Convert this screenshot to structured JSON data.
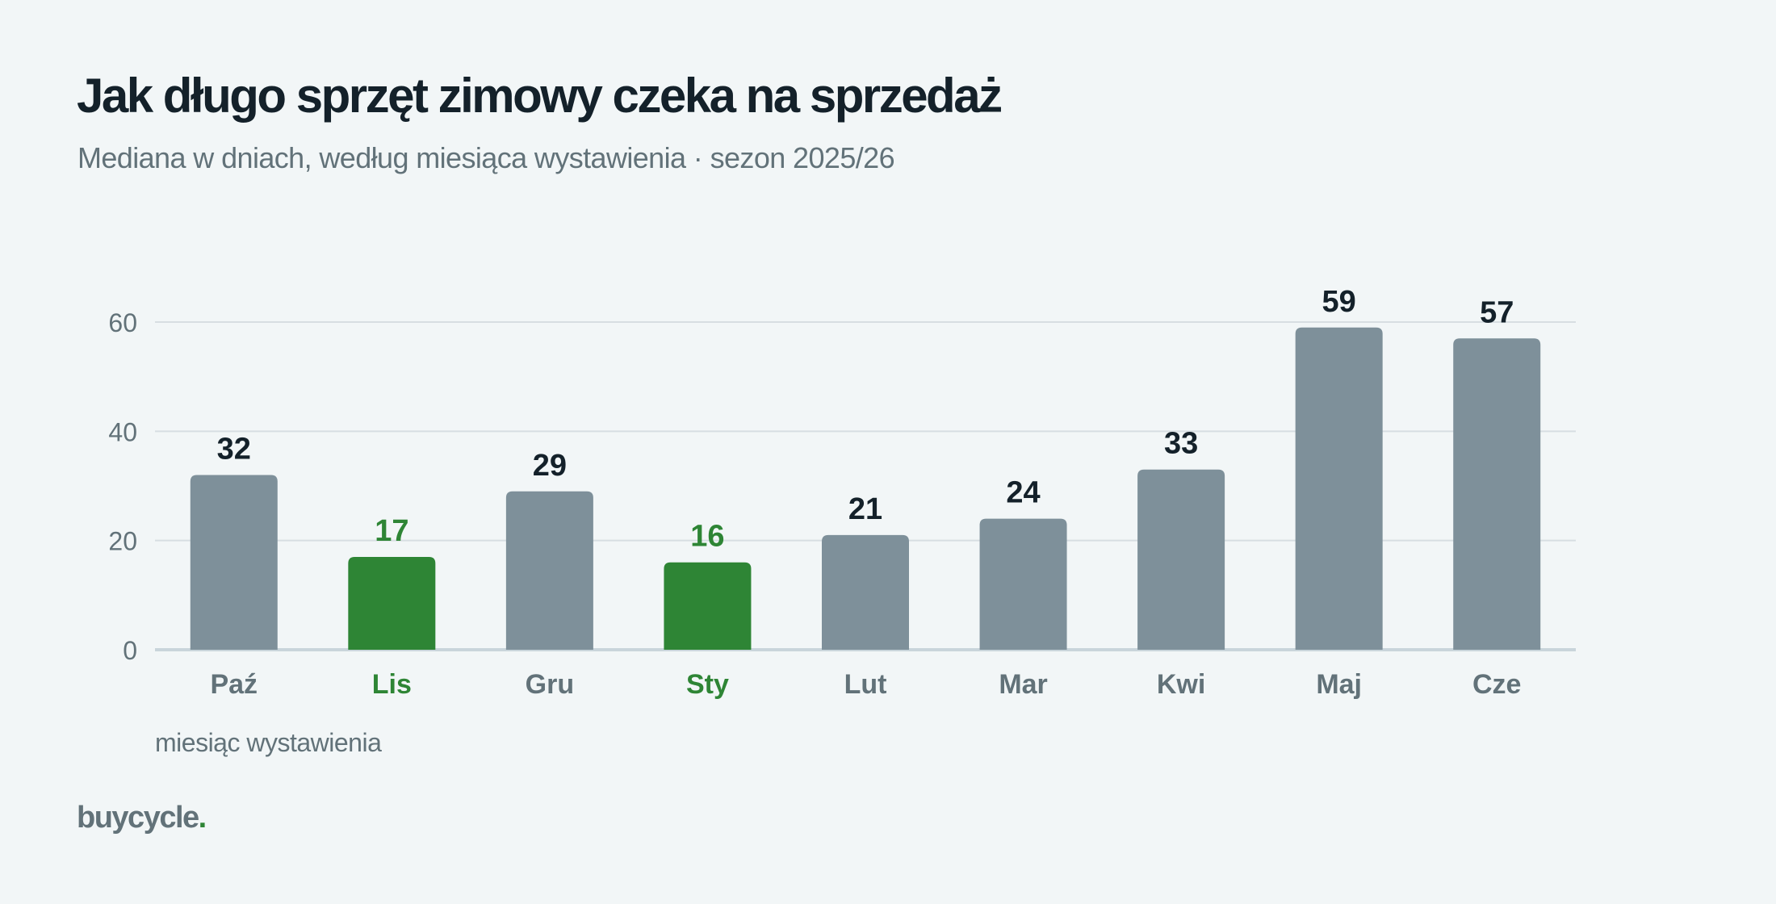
{
  "title": "Jak długo sprzęt zimowy czeka na sprzedaż",
  "subtitle": "Mediana w dniach, według miesiąca wystawienia · sezon 2025/26",
  "brand": {
    "name": "buycycle",
    "dot": "."
  },
  "colors": {
    "bar_default": "#7e909a",
    "bar_highlight": "#2e8535",
    "label_default": "#14212a",
    "tick_default": "#627279",
    "grid": "#d7dee2",
    "axis": "#c9d5db"
  },
  "chart_data": {
    "type": "bar",
    "categories": [
      "Paź",
      "Lis",
      "Gru",
      "Sty",
      "Lut",
      "Mar",
      "Kwi",
      "Maj",
      "Cze"
    ],
    "values": [
      32,
      17,
      29,
      16,
      21,
      24,
      33,
      59,
      57
    ],
    "highlighted": [
      "Lis",
      "Sty"
    ],
    "xlabel": "miesiąc wystawienia",
    "ylabel": "",
    "ylim": [
      0,
      60
    ],
    "yticks": [
      0,
      20,
      40,
      60
    ],
    "grid": true,
    "data_labels": true
  }
}
